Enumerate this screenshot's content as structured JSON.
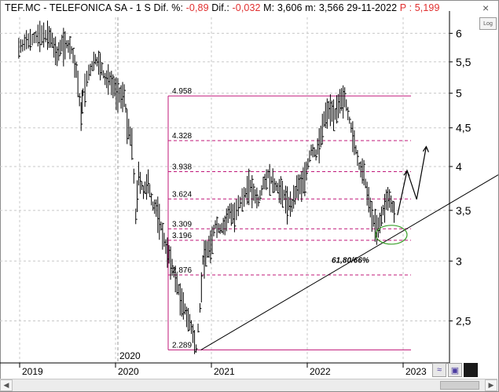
{
  "header": {
    "symbol": "TEF.MC - TELEFONICA SA -",
    "period": "1 S",
    "dif_pct_label": "Dif. %:",
    "dif_pct_value": "-0,89",
    "dif_label": "Dif.:",
    "dif_value": "-0,032",
    "max_label": "M:",
    "max_value": "3,606",
    "min_label": "m:",
    "min_value": "3,566",
    "date": "29-11-2022",
    "price_label": "P :",
    "price_value": "5,199"
  },
  "log_button_label": "Log",
  "colors": {
    "fib_lines": "#c0187a",
    "annotation_circle": "#3aa02a",
    "bars": "#000000",
    "grid": "#c8c8c8"
  },
  "chart_data": {
    "type": "bar",
    "title": "TEF.MC - TELEFONICA SA - 1 S",
    "y_axis": {
      "scale": "log",
      "ticks": [
        "2,5",
        "3",
        "3,5",
        "4",
        "4,5",
        "5",
        "5,5",
        "6"
      ],
      "ylim": [
        2.2,
        6.3
      ]
    },
    "x_axis": {
      "ticks": [
        "2019",
        "2020",
        "2021",
        "2022",
        "2023"
      ],
      "marker_label": "2020"
    },
    "fibonacci_levels": [
      {
        "label": "4.958",
        "value": 4.958,
        "style": "solid"
      },
      {
        "label": "4.328",
        "value": 4.328,
        "style": "dashed"
      },
      {
        "label": "3.938",
        "value": 3.938,
        "style": "dashed"
      },
      {
        "label": "3.624",
        "value": 3.624,
        "style": "dashed"
      },
      {
        "label": "3.309",
        "value": 3.309,
        "style": "dashed"
      },
      {
        "label": "3.196",
        "value": 3.196,
        "style": "dashed"
      },
      {
        "label": "2.876",
        "value": 2.876,
        "style": "dashed"
      },
      {
        "label": "2.289",
        "value": 2.289,
        "style": "solid"
      }
    ],
    "annotation": "61,80/66%",
    "price_path": [
      [
        2018.95,
        5.75
      ],
      [
        2019.05,
        5.88
      ],
      [
        2019.15,
        5.95
      ],
      [
        2019.25,
        5.98
      ],
      [
        2019.3,
        5.85
      ],
      [
        2019.35,
        5.6
      ],
      [
        2019.4,
        5.85
      ],
      [
        2019.45,
        5.8
      ],
      [
        2019.5,
        5.7
      ],
      [
        2019.55,
        5.35
      ],
      [
        2019.6,
        4.7
      ],
      [
        2019.62,
        5.0
      ],
      [
        2019.68,
        5.3
      ],
      [
        2019.75,
        5.55
      ],
      [
        2019.8,
        5.45
      ],
      [
        2019.85,
        5.2
      ],
      [
        2019.9,
        5.25
      ],
      [
        2019.95,
        5.1
      ],
      [
        2020.0,
        4.95
      ],
      [
        2020.05,
        5.0
      ],
      [
        2020.08,
        4.55
      ],
      [
        2020.13,
        4.3
      ],
      [
        2020.17,
        3.45
      ],
      [
        2020.2,
        3.9
      ],
      [
        2020.25,
        3.7
      ],
      [
        2020.3,
        3.8
      ],
      [
        2020.35,
        3.55
      ],
      [
        2020.4,
        3.5
      ],
      [
        2020.45,
        3.25
      ],
      [
        2020.5,
        3.1
      ],
      [
        2020.55,
        2.95
      ],
      [
        2020.6,
        2.8
      ],
      [
        2020.65,
        2.65
      ],
      [
        2020.7,
        2.55
      ],
      [
        2020.75,
        2.45
      ],
      [
        2020.8,
        2.3
      ],
      [
        2020.84,
        2.6
      ],
      [
        2020.87,
        3.0
      ],
      [
        2020.9,
        3.1
      ],
      [
        2020.95,
        3.15
      ],
      [
        2021.0,
        3.35
      ],
      [
        2021.05,
        3.3
      ],
      [
        2021.1,
        3.35
      ],
      [
        2021.15,
        3.5
      ],
      [
        2021.2,
        3.45
      ],
      [
        2021.3,
        3.65
      ],
      [
        2021.35,
        3.8
      ],
      [
        2021.4,
        3.7
      ],
      [
        2021.45,
        3.6
      ],
      [
        2021.5,
        3.8
      ],
      [
        2021.55,
        3.9
      ],
      [
        2021.6,
        3.8
      ],
      [
        2021.65,
        3.75
      ],
      [
        2021.7,
        3.7
      ],
      [
        2021.75,
        3.6
      ],
      [
        2021.8,
        3.55
      ],
      [
        2021.85,
        3.75
      ],
      [
        2021.9,
        3.8
      ],
      [
        2021.95,
        3.95
      ],
      [
        2022.0,
        4.2
      ],
      [
        2022.05,
        4.15
      ],
      [
        2022.1,
        4.4
      ],
      [
        2022.15,
        4.7
      ],
      [
        2022.2,
        4.8
      ],
      [
        2022.25,
        4.7
      ],
      [
        2022.3,
        4.85
      ],
      [
        2022.35,
        4.95
      ],
      [
        2022.4,
        4.6
      ],
      [
        2022.45,
        4.3
      ],
      [
        2022.5,
        4.0
      ],
      [
        2022.55,
        3.9
      ],
      [
        2022.6,
        3.6
      ],
      [
        2022.65,
        3.4
      ],
      [
        2022.7,
        3.3
      ],
      [
        2022.75,
        3.5
      ],
      [
        2022.8,
        3.65
      ],
      [
        2022.85,
        3.55
      ],
      [
        2022.88,
        3.45
      ]
    ],
    "projection_path": [
      [
        2022.9,
        3.45
      ],
      [
        2023.0,
        3.95
      ],
      [
        2023.1,
        3.62
      ],
      [
        2023.2,
        4.25
      ]
    ],
    "trendline": [
      [
        2020.85,
        2.289
      ],
      [
        2024.0,
        3.9
      ]
    ]
  }
}
